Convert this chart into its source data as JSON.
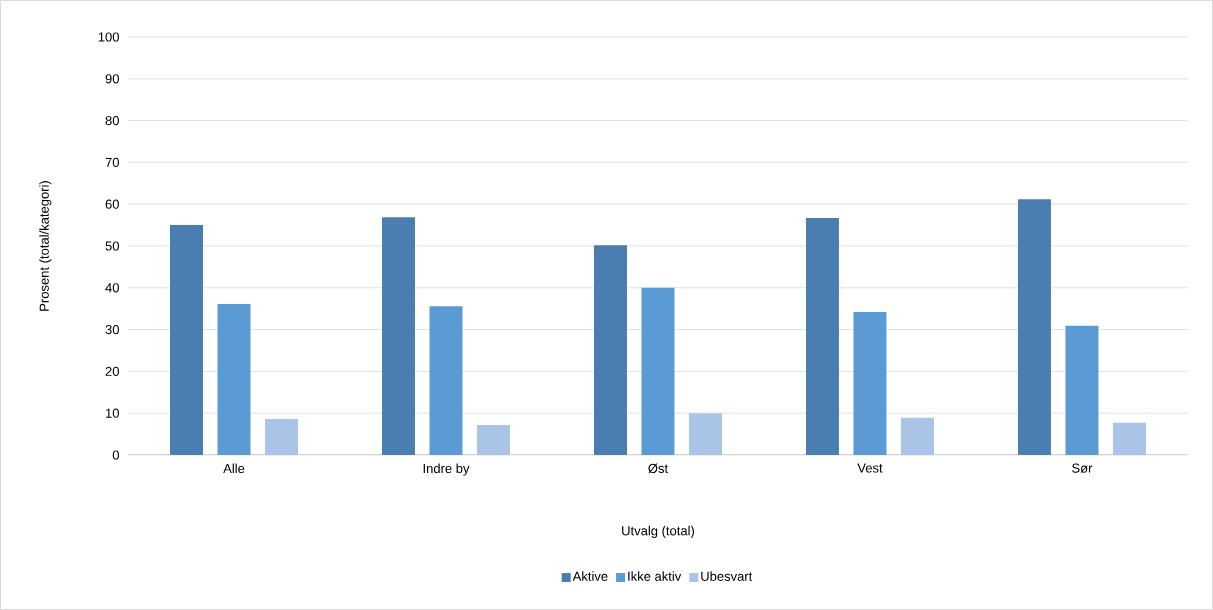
{
  "chart_data": {
    "type": "bar",
    "xlabel": "Utvalg (total)",
    "ylabel": "Prosent (total/kategori)",
    "categories": [
      "Alle",
      "Indre by",
      "Øst",
      "Vest",
      "Sør"
    ],
    "series": [
      {
        "name": "Aktive",
        "color": "#4a7eb0",
        "values": [
          55.0,
          56.9,
          50.2,
          56.7,
          61.2
        ]
      },
      {
        "name": "Ikke aktiv",
        "color": "#5b9bd5",
        "values": [
          36.1,
          35.6,
          40.0,
          34.2,
          30.9
        ]
      },
      {
        "name": "Ubesvart",
        "color": "#a9c4e6",
        "values": [
          8.6,
          7.2,
          10.0,
          8.9,
          7.7
        ]
      }
    ],
    "ylim": [
      0,
      100
    ],
    "yticks": [
      0,
      10,
      20,
      30,
      40,
      50,
      60,
      70,
      80,
      90,
      100
    ],
    "grid": "y",
    "legend": "bottom"
  }
}
